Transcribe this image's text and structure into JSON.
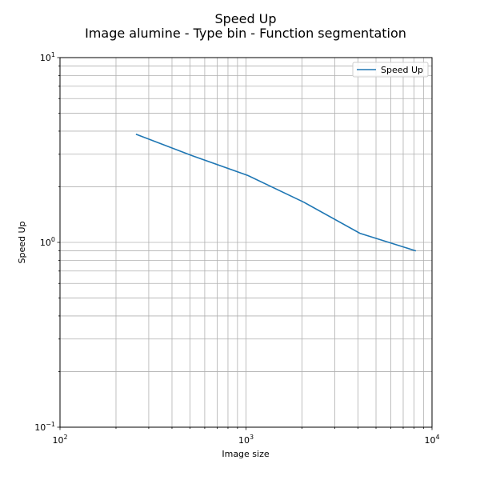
{
  "chart_data": {
    "type": "line",
    "title": "Speed Up",
    "subtitle": "Image alumine - Type bin - Function segmentation",
    "xlabel": "Image size",
    "ylabel": "Speed Up",
    "xscale": "log",
    "yscale": "log",
    "xlim": [
      100,
      10000
    ],
    "ylim": [
      0.1,
      10
    ],
    "grid": "both-major-minor",
    "legend": "top-right",
    "series": [
      {
        "name": "Speed Up",
        "color": "#1f77b4",
        "x": [
          256,
          512,
          1024,
          2048,
          4096,
          8192
        ],
        "y": [
          3.85,
          2.95,
          2.3,
          1.65,
          1.12,
          0.9
        ]
      }
    ],
    "x_ticks": [
      {
        "base": "10",
        "exp": "2"
      },
      {
        "base": "10",
        "exp": "3"
      },
      {
        "base": "10",
        "exp": "4"
      }
    ],
    "y_ticks": [
      {
        "base": "10",
        "exp": "−1"
      },
      {
        "base": "10",
        "exp": "0"
      },
      {
        "base": "10",
        "exp": "1"
      }
    ]
  }
}
